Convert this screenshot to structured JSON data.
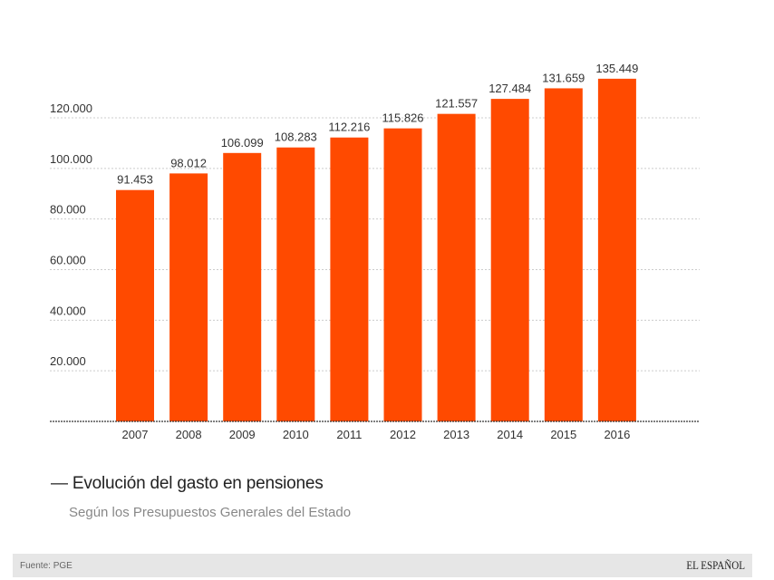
{
  "chart_data": {
    "type": "bar",
    "title": "Evolución del gasto en pensiones",
    "subtitle": "Según los Presupuestos Generales del Estado",
    "categories": [
      "2007",
      "2008",
      "2009",
      "2010",
      "2011",
      "2012",
      "2013",
      "2014",
      "2015",
      "2016"
    ],
    "values": [
      91453,
      98012,
      106099,
      108283,
      112216,
      115826,
      121557,
      127484,
      131659,
      135449
    ],
    "data_labels": [
      "91.453",
      "98.012",
      "106.099",
      "108.283",
      "112.216",
      "115.826",
      "121.557",
      "127.484",
      "131.659",
      "135.449"
    ],
    "y_ticks": [
      20000,
      40000,
      60000,
      80000,
      100000,
      120000
    ],
    "y_tick_labels": [
      "20.000",
      "40.000",
      "60.000",
      "80.000",
      "100.000",
      "120.000"
    ],
    "ylim": [
      0,
      120000
    ],
    "grid": true,
    "bar_color": "#ff4a00",
    "xlabel": "",
    "ylabel": ""
  },
  "footer": {
    "source": "Fuente: PGE",
    "logo": "EL ESPAÑOL"
  }
}
